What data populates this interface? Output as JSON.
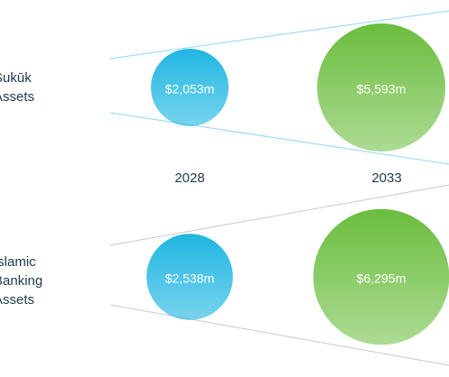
{
  "chart_data": {
    "type": "bubble",
    "categories": [
      "2028",
      "2033"
    ],
    "colors": [
      "#1fb6e2",
      "#6abd3d"
    ],
    "series": [
      {
        "name": "Sukūk Assets",
        "values": [
          2053,
          5593
        ],
        "value_labels": [
          "$2,053m",
          "$5,593m"
        ]
      },
      {
        "name": "Islamic Banking Assets",
        "values": [
          2538,
          6295
        ],
        "value_labels": [
          "$2,538m",
          "$6,295m"
        ]
      }
    ]
  }
}
